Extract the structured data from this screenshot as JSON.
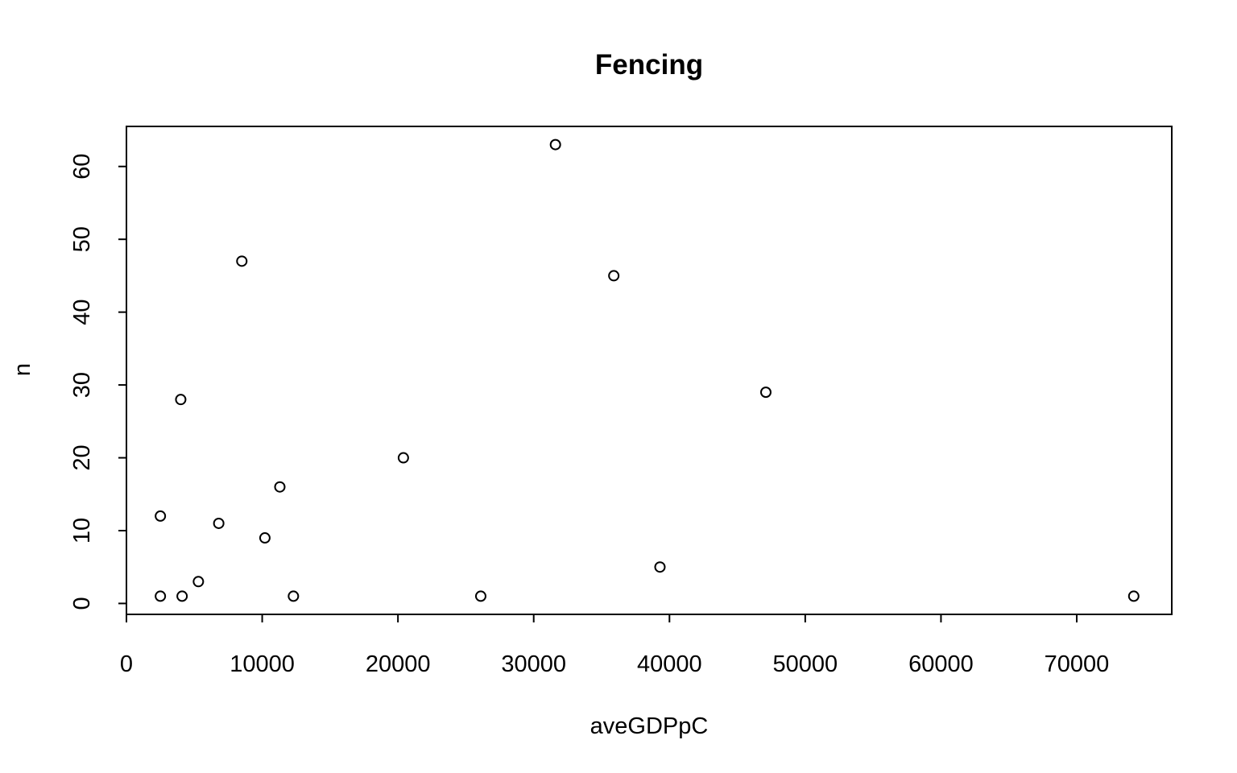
{
  "chart_data": {
    "type": "scatter",
    "title": "Fencing",
    "xlabel": "aveGDPpC",
    "ylabel": "n",
    "xlim": [
      0,
      77000
    ],
    "ylim": [
      -1.5,
      65.5
    ],
    "x_ticks": [
      0,
      10000,
      20000,
      30000,
      40000,
      50000,
      60000,
      70000
    ],
    "x_tick_labels": [
      "0",
      "10000",
      "20000",
      "30000",
      "40000",
      "50000",
      "60000",
      "70000"
    ],
    "y_ticks": [
      0,
      10,
      20,
      30,
      40,
      50,
      60
    ],
    "y_tick_labels": [
      "0",
      "10",
      "20",
      "30",
      "40",
      "50",
      "60"
    ],
    "grid": false,
    "marker": "open-circle",
    "points": [
      {
        "x": 2500,
        "y": 1
      },
      {
        "x": 2500,
        "y": 12
      },
      {
        "x": 4000,
        "y": 28
      },
      {
        "x": 4100,
        "y": 1
      },
      {
        "x": 5300,
        "y": 3
      },
      {
        "x": 6800,
        "y": 11
      },
      {
        "x": 8500,
        "y": 47
      },
      {
        "x": 10200,
        "y": 9
      },
      {
        "x": 11300,
        "y": 16
      },
      {
        "x": 12300,
        "y": 1
      },
      {
        "x": 20400,
        "y": 20
      },
      {
        "x": 26100,
        "y": 1
      },
      {
        "x": 31600,
        "y": 63
      },
      {
        "x": 35900,
        "y": 45
      },
      {
        "x": 39300,
        "y": 5
      },
      {
        "x": 47100,
        "y": 29
      },
      {
        "x": 74200,
        "y": 1
      }
    ],
    "colors": {
      "marker": "#000000",
      "axis": "#000000",
      "background": "#ffffff"
    }
  }
}
